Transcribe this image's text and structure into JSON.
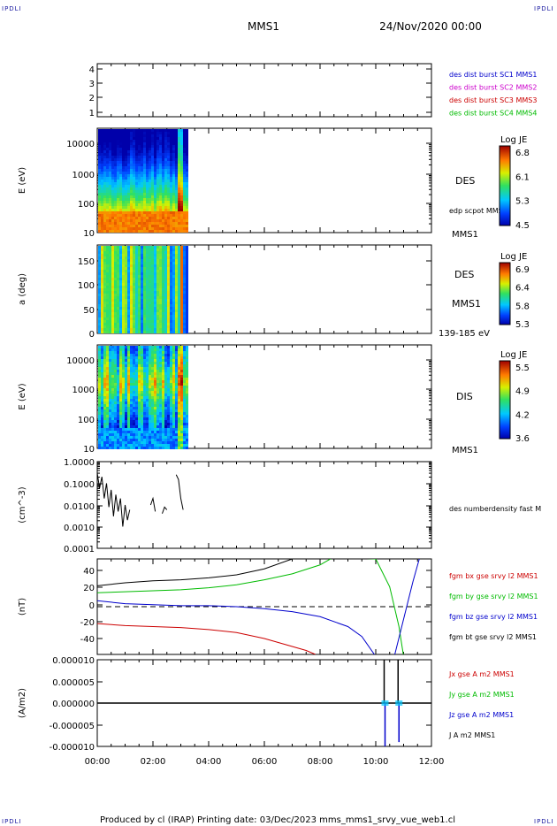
{
  "header": {
    "corner_tl": "IPDLI",
    "corner_tr": "IPDLI",
    "corner_bl": "IPDLI",
    "corner_br": "IPDLI",
    "spacecraft": "MMS1",
    "datetime": "24/Nov/2020 00:00"
  },
  "footer": {
    "text": "Produced by cl (IRAP)   Printing date: 03/Dec/2023   mms_mms1_srvy_vue_web1.cl"
  },
  "chart_data": [
    {
      "type": "line",
      "name": "burst-intervals",
      "y_ticks": [
        "4",
        "3",
        "2",
        "1"
      ],
      "ylim": [
        0.5,
        4.5
      ],
      "legend": [
        {
          "text": "des dist burst SC1 MMS1",
          "color": "#0000cc"
        },
        {
          "text": "des dist burst SC2 MMS2",
          "color": "#cc00cc"
        },
        {
          "text": "des dist burst SC3 MMS3",
          "color": "#cc0000"
        },
        {
          "text": "des dist burst SC4 MMS4",
          "color": "#00bb00"
        }
      ]
    },
    {
      "type": "heatmap",
      "name": "des-energy-spectrogram",
      "ylabel": "E (eV)",
      "y_ticks": [
        "10000",
        "1000",
        "100",
        "10"
      ],
      "log": true,
      "ylim": [
        10,
        30000
      ],
      "data_end_time": "03:15",
      "right_labels": [
        "DES",
        "edp scpot MMS1",
        "MMS1"
      ],
      "colorbar": {
        "title": "Log JE",
        "ticks": [
          "6.8",
          "6.1",
          "5.3",
          "4.5"
        ]
      }
    },
    {
      "type": "heatmap",
      "name": "des-pitch-angle",
      "ylabel": "a (deg)",
      "y_ticks": [
        "150",
        "100",
        "50",
        "0"
      ],
      "ylim": [
        0,
        180
      ],
      "data_end_time": "03:15",
      "right_labels": [
        "DES",
        "MMS1",
        "139-185 eV"
      ],
      "colorbar": {
        "title": "Log JE",
        "ticks": [
          "6.9",
          "6.4",
          "5.8",
          "5.3"
        ]
      }
    },
    {
      "type": "heatmap",
      "name": "dis-energy-spectrogram",
      "ylabel": "E (eV)",
      "y_ticks": [
        "10000",
        "1000",
        "100",
        "10"
      ],
      "log": true,
      "ylim": [
        10,
        30000
      ],
      "data_end_time": "03:15",
      "right_labels": [
        "DIS",
        "MMS1"
      ],
      "colorbar": {
        "title": "Log JE",
        "ticks": [
          "5.5",
          "4.9",
          "4.2",
          "3.6"
        ]
      }
    },
    {
      "type": "line",
      "name": "number-density",
      "ylabel": "(cm^-3)",
      "y_ticks": [
        "1.0000",
        "0.1000",
        "0.0100",
        "0.0010",
        "0.0001"
      ],
      "log": true,
      "ylim": [
        0.0001,
        1.0
      ],
      "legend": [
        {
          "text": "des numberdensity fast M",
          "color": "#000000"
        }
      ],
      "series": [
        {
          "name": "des numberdensity fast M",
          "segments": [
            {
              "x": [
                "00:00",
                "00:05",
                "00:10",
                "00:15",
                "00:20",
                "00:25",
                "00:30",
                "00:35",
                "00:40",
                "00:45",
                "00:50",
                "00:55",
                "01:00",
                "01:05",
                "01:10"
              ],
              "y": [
                0.3,
                0.06,
                0.2,
                0.02,
                0.1,
                0.008,
                0.05,
                0.003,
                0.03,
                0.005,
                0.02,
                0.001,
                0.01,
                0.002,
                0.006
              ]
            },
            {
              "x": [
                "01:55",
                "02:00",
                "02:05"
              ],
              "y": [
                0.01,
                0.02,
                0.005
              ]
            },
            {
              "x": [
                "02:20",
                "02:25",
                "02:30"
              ],
              "y": [
                0.004,
                0.008,
                0.006
              ]
            },
            {
              "x": [
                "02:50",
                "02:55",
                "03:00",
                "03:05"
              ],
              "y": [
                0.25,
                0.15,
                0.02,
                0.006
              ]
            }
          ]
        }
      ]
    },
    {
      "type": "line",
      "name": "magnetic-field",
      "ylabel": "(nT)",
      "y_ticks": [
        "40",
        "20",
        "0",
        "-20",
        "-40"
      ],
      "ylim": [
        -48,
        48
      ],
      "legend": [
        {
          "text": "fgm bx gse srvy l2 MMS1",
          "color": "#cc0000"
        },
        {
          "text": "fgm by gse srvy l2 MMS1",
          "color": "#00bb00"
        },
        {
          "text": "fgm bz gse srvy l2 MMS1",
          "color": "#0000cc"
        },
        {
          "text": "fgm bt gse srvy l2 MMS1",
          "color": "#000000"
        }
      ],
      "series": [
        {
          "name": "fgm bt gse srvy l2 MMS1",
          "color": "#000000",
          "x": [
            "00:00",
            "01:00",
            "02:00",
            "03:00",
            "04:00",
            "05:00",
            "06:00",
            "07:00",
            "07:10"
          ],
          "y": [
            21,
            24,
            26,
            27,
            29,
            32,
            38,
            48,
            52
          ]
        },
        {
          "name": "fgm by gse srvy l2 MMS1",
          "color": "#00bb00",
          "x": [
            "00:00",
            "01:00",
            "02:00",
            "03:00",
            "04:00",
            "05:00",
            "06:00",
            "07:00",
            "08:00",
            "08:30",
            "10:00",
            "10:30",
            "10:50",
            "11:00"
          ],
          "y": [
            14,
            15,
            16,
            17,
            19,
            22,
            27,
            33,
            42,
            50,
            48,
            20,
            -20,
            -50
          ]
        },
        {
          "name": "fgm bz gse srvy l2 MMS1",
          "color": "#0000cc",
          "x": [
            "00:00",
            "01:00",
            "02:00",
            "03:00",
            "04:00",
            "05:00",
            "06:00",
            "07:00",
            "08:00",
            "09:00",
            "09:30",
            "10:00",
            "10:40",
            "11:20",
            "11:35"
          ],
          "y": [
            6,
            3,
            2,
            1,
            1,
            0,
            -2,
            -5,
            -10,
            -20,
            -30,
            -50,
            -50,
            25,
            50
          ]
        },
        {
          "name": "fgm bx gse srvy l2 MMS1",
          "color": "#cc0000",
          "x": [
            "00:00",
            "01:00",
            "02:00",
            "03:00",
            "04:00",
            "05:00",
            "06:00",
            "07:00",
            "07:30",
            "07:50"
          ],
          "y": [
            -17,
            -19,
            -20,
            -21,
            -23,
            -26,
            -32,
            -40,
            -44,
            -48
          ]
        }
      ],
      "reference_line": 0
    },
    {
      "type": "line",
      "name": "current-density",
      "ylabel": "(A/m2)",
      "y_ticks": [
        "0.000010",
        "0.000005",
        "0.000000",
        "-0.000005",
        "-0.000010"
      ],
      "ylim": [
        -1e-05,
        1e-05
      ],
      "legend": [
        {
          "text": "Jx gse A m2 MMS1",
          "color": "#cc0000"
        },
        {
          "text": "Jy gse A m2 MMS1",
          "color": "#00bb00"
        },
        {
          "text": "Jz gse A m2 MMS1",
          "color": "#0000cc"
        },
        {
          "text": "J A m2 MMS1",
          "color": "#000000"
        }
      ],
      "spikes": [
        {
          "x": "10:20",
          "jz_min": -1e-05,
          "j_max": 1e-05
        },
        {
          "x": "10:50",
          "jz_min": -9e-06,
          "j_max": 1e-05
        }
      ]
    }
  ],
  "x_axis": {
    "ticks": [
      "00:00",
      "02:00",
      "04:00",
      "06:00",
      "08:00",
      "10:00",
      "12:00"
    ],
    "range_hours": [
      0,
      12
    ]
  }
}
